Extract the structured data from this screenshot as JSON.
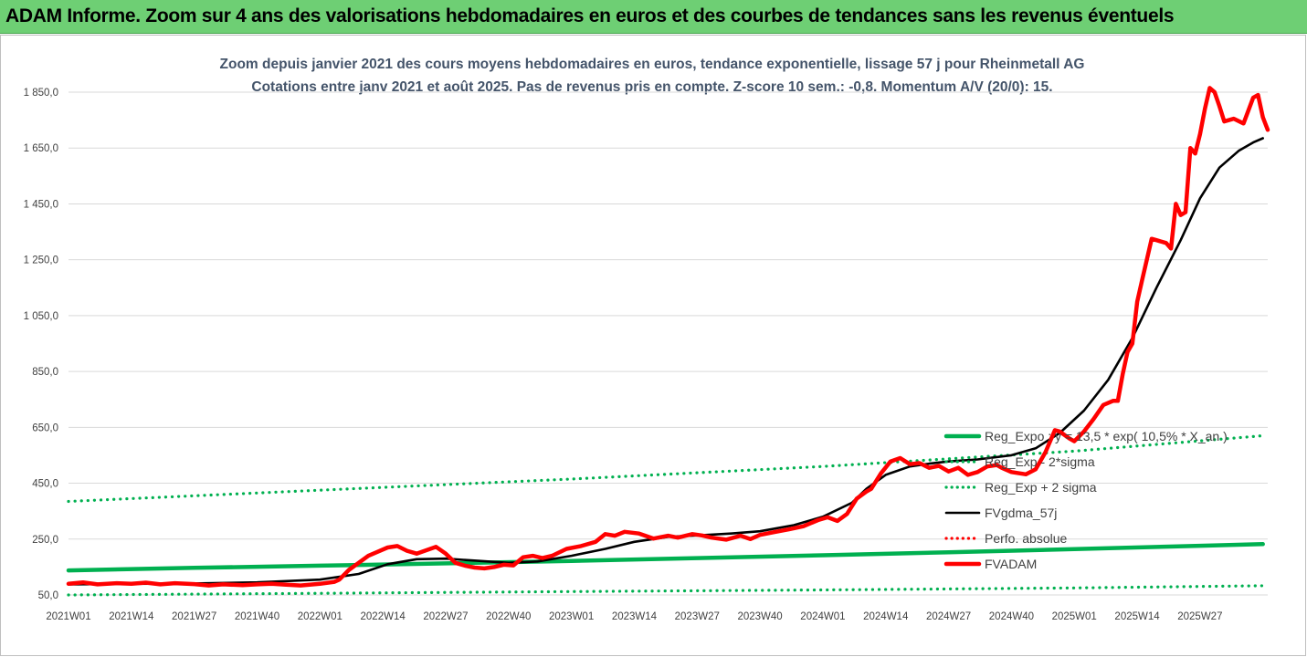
{
  "banner": {
    "title": "ADAM Informe. Zoom sur 4 ans des valorisations hebdomadaires en euros et des courbes de tendances sans les revenus éventuels"
  },
  "chart_data": {
    "type": "line",
    "title_line1": "Zoom depuis janvier 2021 des cours moyens hebdomadaires en euros, tendance exponentielle, lissage 57 j pour Rheinmetall AG",
    "title_line2": "Cotations entre janv 2021 et août 2025.  Pas de revenus pris en compte. Z-score 10 sem.: -0,8. Momentum A/V (20/0): 15.",
    "ylim": [
      50,
      1850
    ],
    "y_ticks": [
      {
        "value": 50,
        "label": "50,0"
      },
      {
        "value": 250,
        "label": "250,0"
      },
      {
        "value": 450,
        "label": "450,0"
      },
      {
        "value": 650,
        "label": "650,0"
      },
      {
        "value": 850,
        "label": "850,0"
      },
      {
        "value": 1050,
        "label": "1 050,0"
      },
      {
        "value": 1250,
        "label": "1 250,0"
      },
      {
        "value": 1450,
        "label": "1 450,0"
      },
      {
        "value": 1650,
        "label": "1 650,0"
      },
      {
        "value": 1850,
        "label": "1 850,0"
      }
    ],
    "x_ticks": [
      "2021W01",
      "2021W14",
      "2021W27",
      "2021W40",
      "2022W01",
      "2022W14",
      "2022W27",
      "2022W40",
      "2023W01",
      "2023W14",
      "2023W27",
      "2023W40",
      "2024W01",
      "2024W14",
      "2024W27",
      "2024W40",
      "2025W01",
      "2025W14",
      "2025W27"
    ],
    "legend_position": "right",
    "series": [
      {
        "name": "Reg_Expo : y = 13,5 * exp( 10,5% * X_an )",
        "color": "#00b050",
        "style": "solid",
        "values": [
          [
            0,
            138
          ],
          [
            26,
            147
          ],
          [
            52,
            155
          ],
          [
            78,
            163
          ],
          [
            104,
            172
          ],
          [
            130,
            182
          ],
          [
            156,
            192
          ],
          [
            182,
            203
          ],
          [
            208,
            214
          ],
          [
            234,
            226
          ],
          [
            247,
            232
          ]
        ]
      },
      {
        "name": "Reg_Exp - 2*sigma",
        "color": "#00b050",
        "style": "dotted",
        "values": [
          [
            0,
            50
          ],
          [
            52,
            56
          ],
          [
            104,
            62
          ],
          [
            156,
            68
          ],
          [
            208,
            75
          ],
          [
            247,
            83
          ]
        ]
      },
      {
        "name": "Reg_Exp + 2 sigma",
        "color": "#00b050",
        "style": "dotted",
        "values": [
          [
            0,
            385
          ],
          [
            52,
            425
          ],
          [
            104,
            465
          ],
          [
            156,
            510
          ],
          [
            208,
            565
          ],
          [
            247,
            620
          ]
        ]
      },
      {
        "name": "FVgdma_57j",
        "color": "#000000",
        "style": "solid",
        "values": [
          [
            0,
            88
          ],
          [
            13,
            90
          ],
          [
            26,
            91
          ],
          [
            39,
            95
          ],
          [
            52,
            105
          ],
          [
            60,
            125
          ],
          [
            66,
            160
          ],
          [
            72,
            178
          ],
          [
            78,
            180
          ],
          [
            85,
            172
          ],
          [
            91,
            165
          ],
          [
            97,
            170
          ],
          [
            104,
            190
          ],
          [
            111,
            215
          ],
          [
            117,
            240
          ],
          [
            124,
            258
          ],
          [
            130,
            263
          ],
          [
            137,
            270
          ],
          [
            143,
            278
          ],
          [
            150,
            300
          ],
          [
            156,
            330
          ],
          [
            162,
            380
          ],
          [
            165,
            430
          ],
          [
            169,
            480
          ],
          [
            174,
            510
          ],
          [
            178,
            520
          ],
          [
            182,
            528
          ],
          [
            188,
            535
          ],
          [
            195,
            550
          ],
          [
            200,
            575
          ],
          [
            205,
            630
          ],
          [
            210,
            710
          ],
          [
            215,
            820
          ],
          [
            220,
            970
          ],
          [
            225,
            1150
          ],
          [
            230,
            1320
          ],
          [
            234,
            1470
          ],
          [
            238,
            1580
          ],
          [
            242,
            1640
          ],
          [
            245,
            1670
          ],
          [
            247,
            1685
          ]
        ]
      },
      {
        "name": "Perfo. absolue",
        "color": "#ff0000",
        "style": "dotted",
        "values": []
      },
      {
        "name": "FVADAM",
        "color": "#ff0000",
        "style": "solid",
        "values": [
          [
            0,
            90
          ],
          [
            3,
            95
          ],
          [
            6,
            88
          ],
          [
            10,
            92
          ],
          [
            13,
            90
          ],
          [
            16,
            94
          ],
          [
            19,
            88
          ],
          [
            22,
            92
          ],
          [
            26,
            89
          ],
          [
            29,
            84
          ],
          [
            32,
            88
          ],
          [
            36,
            85
          ],
          [
            39,
            88
          ],
          [
            42,
            90
          ],
          [
            45,
            87
          ],
          [
            48,
            84
          ],
          [
            52,
            90
          ],
          [
            55,
            97
          ],
          [
            56,
            105
          ],
          [
            58,
            140
          ],
          [
            60,
            165
          ],
          [
            62,
            190
          ],
          [
            64,
            205
          ],
          [
            66,
            220
          ],
          [
            68,
            225
          ],
          [
            70,
            208
          ],
          [
            72,
            198
          ],
          [
            74,
            210
          ],
          [
            76,
            222
          ],
          [
            78,
            198
          ],
          [
            80,
            165
          ],
          [
            82,
            155
          ],
          [
            84,
            148
          ],
          [
            86,
            145
          ],
          [
            88,
            150
          ],
          [
            90,
            158
          ],
          [
            92,
            156
          ],
          [
            94,
            185
          ],
          [
            96,
            190
          ],
          [
            98,
            182
          ],
          [
            100,
            190
          ],
          [
            103,
            215
          ],
          [
            106,
            225
          ],
          [
            109,
            240
          ],
          [
            111,
            268
          ],
          [
            113,
            262
          ],
          [
            115,
            276
          ],
          [
            118,
            270
          ],
          [
            121,
            252
          ],
          [
            124,
            262
          ],
          [
            126,
            255
          ],
          [
            129,
            268
          ],
          [
            131,
            263
          ],
          [
            133,
            255
          ],
          [
            136,
            248
          ],
          [
            139,
            262
          ],
          [
            141,
            250
          ],
          [
            143,
            265
          ],
          [
            146,
            275
          ],
          [
            149,
            285
          ],
          [
            152,
            296
          ],
          [
            155,
            318
          ],
          [
            157,
            328
          ],
          [
            159,
            315
          ],
          [
            161,
            340
          ],
          [
            163,
            395
          ],
          [
            165,
            420
          ],
          [
            166,
            430
          ],
          [
            168,
            485
          ],
          [
            170,
            528
          ],
          [
            172,
            540
          ],
          [
            174,
            518
          ],
          [
            176,
            522
          ],
          [
            178,
            505
          ],
          [
            180,
            512
          ],
          [
            182,
            492
          ],
          [
            184,
            505
          ],
          [
            186,
            480
          ],
          [
            188,
            490
          ],
          [
            190,
            510
          ],
          [
            192,
            515
          ],
          [
            193,
            505
          ],
          [
            195,
            490
          ],
          [
            198,
            482
          ],
          [
            200,
            500
          ],
          [
            202,
            560
          ],
          [
            204,
            640
          ],
          [
            205,
            635
          ],
          [
            207,
            610
          ],
          [
            208,
            600
          ],
          [
            210,
            635
          ],
          [
            212,
            680
          ],
          [
            214,
            730
          ],
          [
            216,
            745
          ],
          [
            217,
            745
          ],
          [
            218,
            840
          ],
          [
            219,
            920
          ],
          [
            220,
            950
          ],
          [
            221,
            1100
          ],
          [
            222,
            1175
          ],
          [
            223,
            1250
          ],
          [
            224,
            1325
          ],
          [
            225,
            1320
          ],
          [
            227,
            1310
          ],
          [
            228,
            1290
          ],
          [
            229,
            1450
          ],
          [
            230,
            1410
          ],
          [
            231,
            1420
          ],
          [
            232,
            1650
          ],
          [
            233,
            1630
          ],
          [
            234,
            1700
          ],
          [
            235,
            1790
          ],
          [
            236,
            1865
          ],
          [
            237,
            1850
          ],
          [
            238,
            1800
          ],
          [
            239,
            1745
          ],
          [
            241,
            1755
          ],
          [
            243,
            1738
          ],
          [
            245,
            1830
          ],
          [
            246,
            1840
          ],
          [
            247,
            1760
          ],
          [
            248,
            1715
          ]
        ]
      }
    ]
  }
}
